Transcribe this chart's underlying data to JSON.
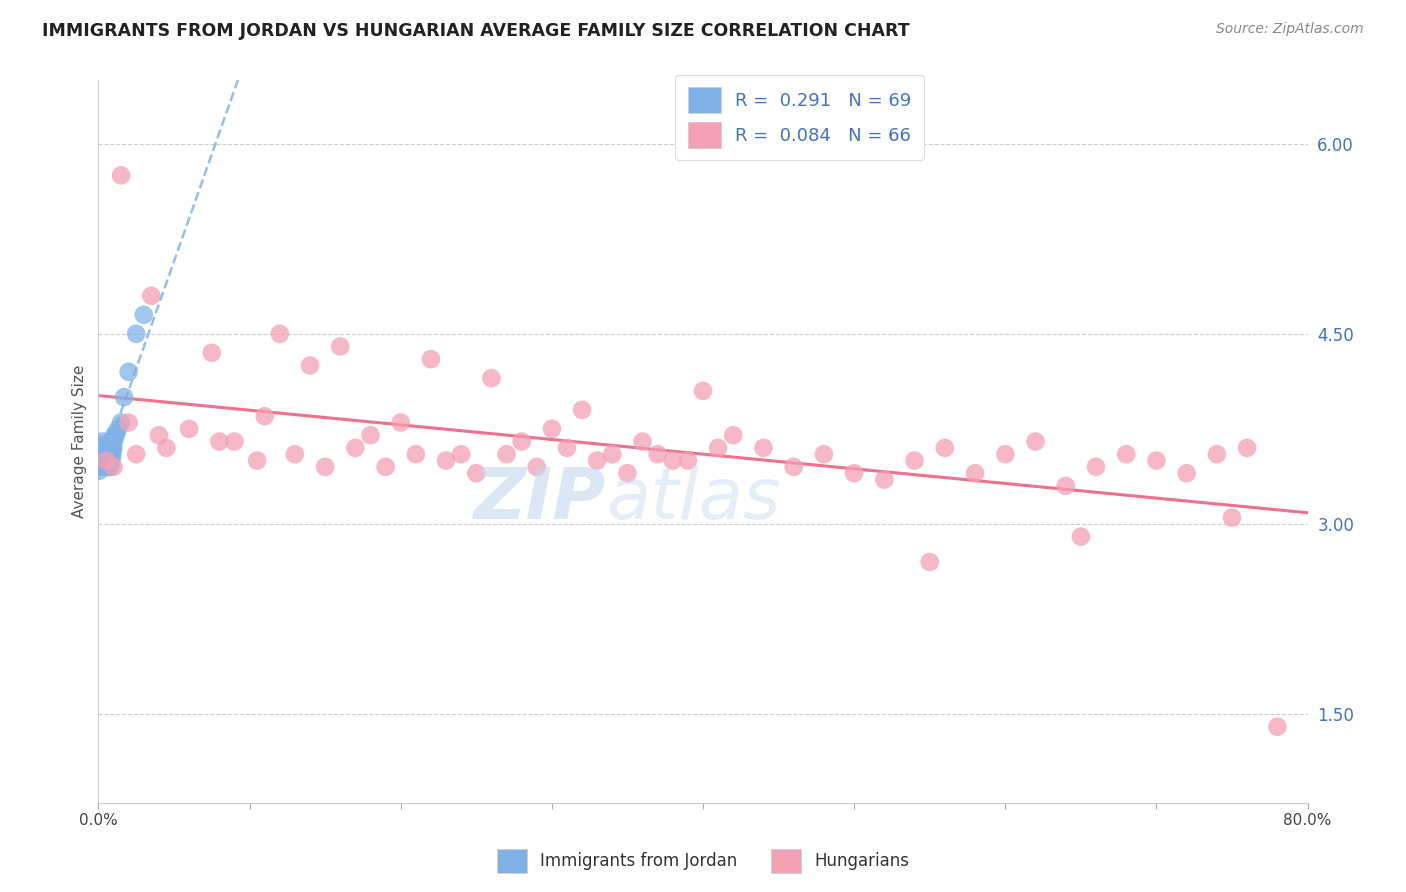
{
  "title": "IMMIGRANTS FROM JORDAN VS HUNGARIAN AVERAGE FAMILY SIZE CORRELATION CHART",
  "source": "Source: ZipAtlas.com",
  "ylabel": "Average Family Size",
  "right_yticks": [
    1.5,
    3.0,
    4.5,
    6.0
  ],
  "legend_label1": "Immigrants from Jordan",
  "legend_label2": "Hungarians",
  "blue_color": "#7fb3e8",
  "pink_color": "#f4a0b5",
  "trend_blue_color": "#7fb3e8",
  "trend_pink_color": "#f06080",
  "xlim": [
    0,
    80
  ],
  "ylim": [
    0.8,
    6.5
  ],
  "blue_scatter_x": [
    0.05,
    0.08,
    0.1,
    0.12,
    0.15,
    0.18,
    0.2,
    0.22,
    0.25,
    0.28,
    0.3,
    0.32,
    0.35,
    0.38,
    0.4,
    0.42,
    0.45,
    0.48,
    0.5,
    0.55,
    0.58,
    0.6,
    0.65,
    0.68,
    0.7,
    0.72,
    0.75,
    0.78,
    0.8,
    0.85,
    0.9,
    0.95,
    1.0,
    1.05,
    1.1,
    1.2,
    1.3,
    1.5,
    1.7,
    2.0,
    2.5,
    3.0,
    0.06,
    0.09,
    0.13,
    0.16,
    0.19,
    0.23,
    0.26,
    0.29,
    0.33,
    0.36,
    0.39,
    0.43,
    0.46,
    0.49,
    0.52,
    0.56,
    0.59,
    0.62,
    0.66,
    0.69,
    0.73,
    0.76,
    0.79,
    0.83,
    0.88,
    0.93,
    0.98
  ],
  "blue_scatter_y": [
    3.45,
    3.5,
    3.48,
    3.52,
    3.55,
    3.47,
    3.6,
    3.58,
    3.62,
    3.65,
    3.5,
    3.48,
    3.55,
    3.52,
    3.6,
    3.45,
    3.58,
    3.52,
    3.55,
    3.5,
    3.48,
    3.62,
    3.45,
    3.58,
    3.52,
    3.55,
    3.6,
    3.48,
    3.65,
    3.52,
    3.58,
    3.6,
    3.65,
    3.7,
    3.68,
    3.72,
    3.75,
    3.8,
    4.0,
    4.2,
    4.5,
    4.65,
    3.42,
    3.5,
    3.48,
    3.52,
    3.55,
    3.47,
    3.6,
    3.58,
    3.62,
    3.55,
    3.5,
    3.48,
    3.55,
    3.52,
    3.6,
    3.45,
    3.58,
    3.52,
    3.55,
    3.5,
    3.48,
    3.62,
    3.45,
    3.58,
    3.52,
    3.55,
    3.6
  ],
  "pink_scatter_x": [
    0.5,
    1.0,
    1.5,
    2.5,
    3.5,
    4.5,
    6.0,
    7.5,
    9.0,
    10.5,
    12.0,
    14.0,
    16.0,
    18.0,
    20.0,
    22.0,
    24.0,
    26.0,
    28.0,
    30.0,
    32.0,
    34.0,
    36.0,
    38.0,
    40.0,
    42.0,
    44.0,
    46.0,
    48.0,
    50.0,
    52.0,
    54.0,
    56.0,
    58.0,
    60.0,
    62.0,
    64.0,
    66.0,
    68.0,
    70.0,
    72.0,
    74.0,
    76.0,
    78.0,
    2.0,
    4.0,
    8.0,
    11.0,
    13.0,
    15.0,
    17.0,
    19.0,
    21.0,
    23.0,
    25.0,
    27.0,
    29.0,
    31.0,
    33.0,
    35.0,
    37.0,
    39.0,
    41.0,
    55.0,
    65.0,
    75.0
  ],
  "pink_scatter_y": [
    3.5,
    3.45,
    5.75,
    3.55,
    4.8,
    3.6,
    3.75,
    4.35,
    3.65,
    3.5,
    4.5,
    4.25,
    4.4,
    3.7,
    3.8,
    4.3,
    3.55,
    4.15,
    3.65,
    3.75,
    3.9,
    3.55,
    3.65,
    3.5,
    4.05,
    3.7,
    3.6,
    3.45,
    3.55,
    3.4,
    3.35,
    3.5,
    3.6,
    3.4,
    3.55,
    3.65,
    3.3,
    3.45,
    3.55,
    3.5,
    3.4,
    3.55,
    3.6,
    1.4,
    3.8,
    3.7,
    3.65,
    3.85,
    3.55,
    3.45,
    3.6,
    3.45,
    3.55,
    3.5,
    3.4,
    3.55,
    3.45,
    3.6,
    3.5,
    3.4,
    3.55,
    3.5,
    3.6,
    2.7,
    2.9,
    3.05
  ],
  "watermark_text": "ZIPatlas",
  "watermark_color": "#c5d8f0",
  "watermark_alpha": 0.6
}
